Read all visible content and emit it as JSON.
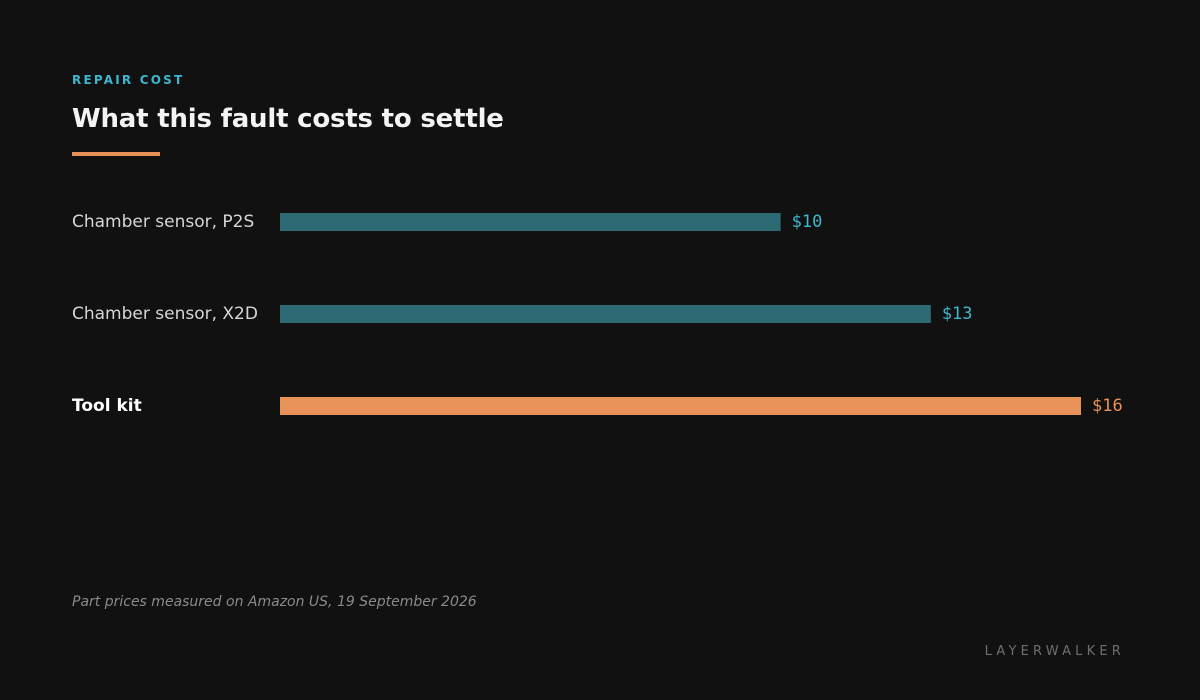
{
  "header": {
    "eyebrow": "REPAIR COST",
    "title": "What this fault costs to settle"
  },
  "footer": {
    "note": "Part prices measured on Amazon US, 19 September 2026",
    "brand": "LAYERWALKER"
  },
  "colors": {
    "background": "#111111",
    "accent_orange": "#e8925a",
    "accent_cyan": "#3fb6cf",
    "bar_teal": "#2e6a73",
    "bar_highlight": "#e8925a"
  },
  "chart_data": {
    "type": "bar",
    "orientation": "horizontal",
    "categories": [
      "Chamber sensor, P2S",
      "Chamber sensor, X2D",
      "Tool kit"
    ],
    "values": [
      10,
      13,
      16
    ],
    "value_labels": [
      "$10",
      "$13",
      "$16"
    ],
    "unit": "USD",
    "highlight": [
      false,
      false,
      true
    ],
    "xlim": [
      0,
      16
    ],
    "grid": false,
    "legend": "none"
  }
}
